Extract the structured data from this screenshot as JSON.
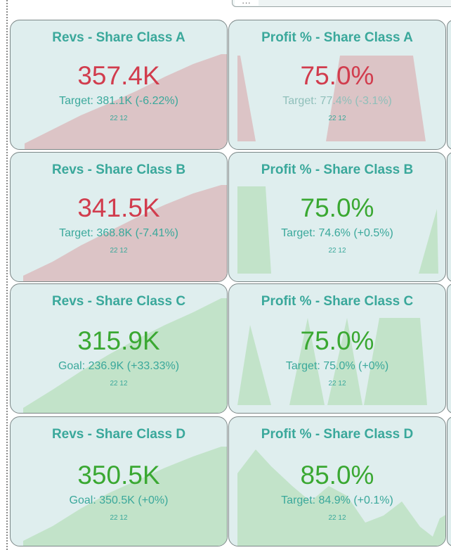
{
  "colors": {
    "card_bg": "#dfeeee",
    "card_border": "#7c8787",
    "title": "#3aa89b",
    "negative": "#d13c4d",
    "positive": "#3aa832",
    "negative_area": "#dcc4c6",
    "positive_area": "#c2e3c9"
  },
  "top_handle_label": "...",
  "cards": [
    {
      "title": "Revs - Share Class A",
      "value": "357.4K",
      "target": "Target: 381.1K (-6.22%)",
      "stamp": "22 12",
      "status": "negative"
    },
    {
      "title": "Profit % - Share Class A",
      "value": "75.0%",
      "target": "Target: 77.4% (-3.1%)",
      "stamp": "22 12",
      "status": "negative"
    },
    {
      "title": "Revs - Share Class B",
      "value": "341.5K",
      "target": "Target: 368.8K (-7.41%)",
      "stamp": "22 12",
      "status": "negative"
    },
    {
      "title": "Profit % - Share Class B",
      "value": "75.0%",
      "target": "Target: 74.6% (+0.5%)",
      "stamp": "22 12",
      "status": "positive"
    },
    {
      "title": "Revs - Share Class C",
      "value": "315.9K",
      "target": "Goal: 236.9K (+33.33%)",
      "stamp": "22 12",
      "status": "positive"
    },
    {
      "title": "Profit % - Share Class C",
      "value": "75.0%",
      "target": "Target: 75.0% (+0%)",
      "stamp": "22 12",
      "status": "positive"
    },
    {
      "title": "Revs - Share Class D",
      "value": "350.5K",
      "target": "Goal: 350.5K (+0%)",
      "stamp": "22 12",
      "status": "positive"
    },
    {
      "title": "Profit % - Share Class D",
      "value": "85.0%",
      "target": "Target: 84.9% (+0.1%)",
      "stamp": "22 12",
      "status": "positive"
    }
  ]
}
